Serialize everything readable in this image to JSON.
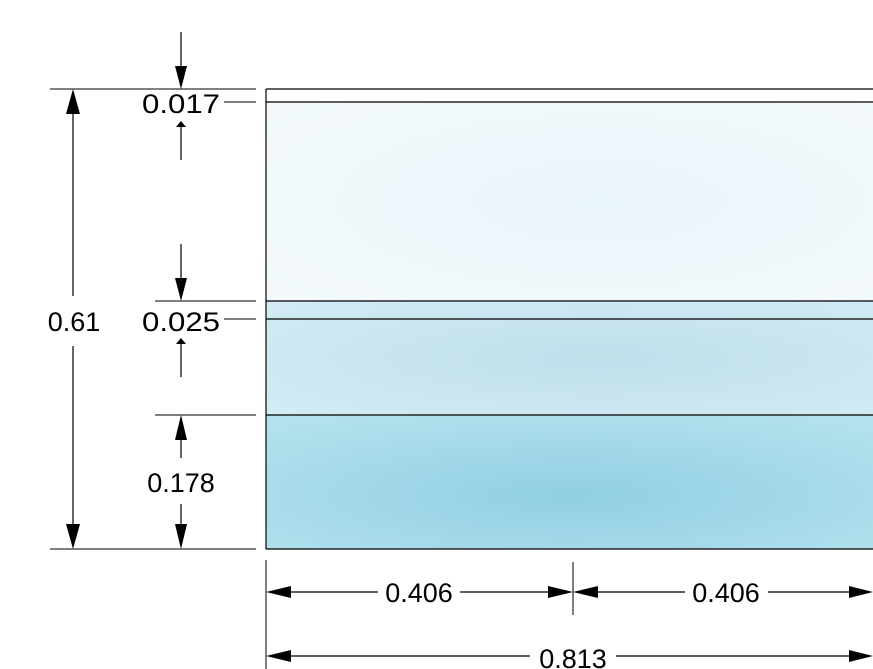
{
  "dimensions": {
    "total_height": "0.61",
    "top_layer": "0.017",
    "middle_layer": "0.025",
    "bottom_layer": "0.178",
    "half_width_left": "0.406",
    "half_width_right": "0.406",
    "total_width": "0.813"
  },
  "colors": {
    "top_layer_fill": "#eef7fb",
    "middle_layer_fill": "#c9e7f2",
    "bottom_layer_fill": "#9fd8ea",
    "line": "#000000"
  }
}
